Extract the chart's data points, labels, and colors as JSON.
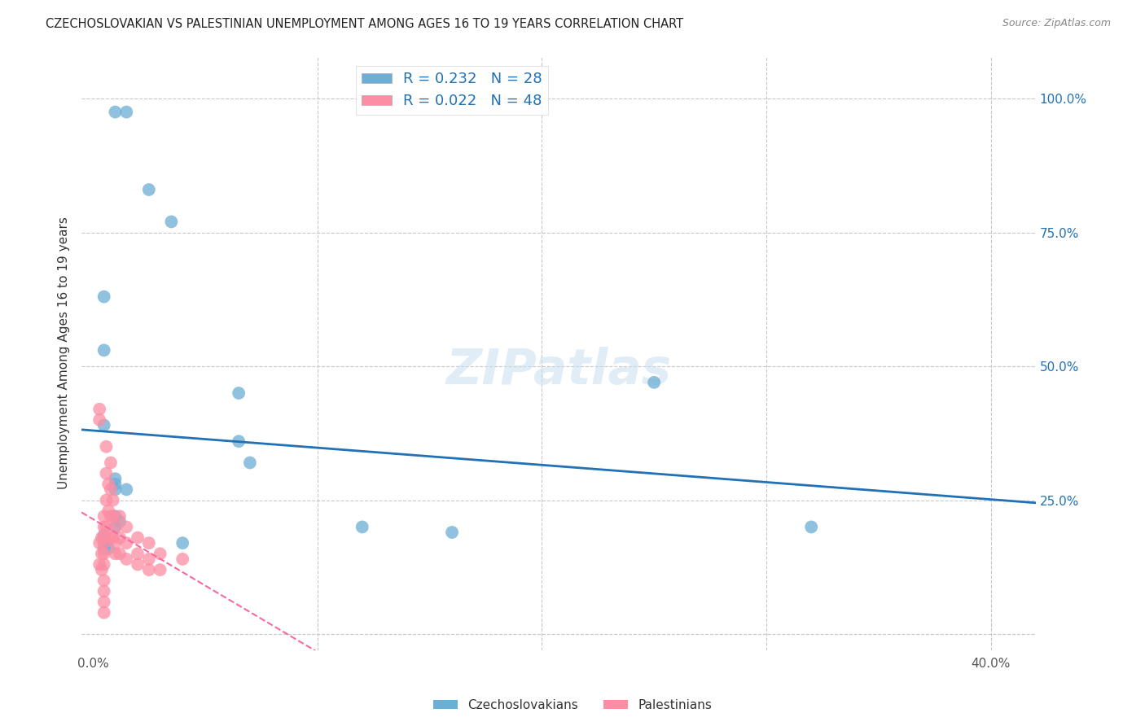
{
  "title": "CZECHOSLOVAKIAN VS PALESTINIAN UNEMPLOYMENT AMONG AGES 16 TO 19 YEARS CORRELATION CHART",
  "source": "Source: ZipAtlas.com",
  "ylabel": "Unemployment Among Ages 16 to 19 years",
  "x_ticks": [
    0.0,
    10.0,
    20.0,
    30.0,
    40.0
  ],
  "x_tick_labels": [
    "0.0%",
    "",
    "",
    "",
    "40.0%"
  ],
  "y_ticks": [
    0.0,
    25.0,
    50.0,
    75.0,
    100.0
  ],
  "y_tick_labels": [
    "",
    "25.0%",
    "50.0%",
    "75.0%",
    "100.0%"
  ],
  "xlim": [
    -0.5,
    42.0
  ],
  "ylim": [
    -3.0,
    108.0
  ],
  "legend_labels": [
    "Czechoslovakians",
    "Palestinians"
  ],
  "r_czech": 0.232,
  "n_czech": 28,
  "r_pales": 0.022,
  "n_pales": 48,
  "blue_color": "#6baed6",
  "pink_color": "#fc8da3",
  "blue_line_color": "#2171b5",
  "pink_line_color": "#f768a1",
  "watermark": "ZIPatlas",
  "background_color": "#ffffff",
  "grid_color": "#c8c8c8",
  "czech_x": [
    2.5,
    3.5,
    0.5,
    0.5,
    6.5,
    25.0,
    0.5,
    6.5,
    1.0,
    1.0,
    1.0,
    1.5,
    1.0,
    1.2,
    1.0,
    12.0,
    0.5,
    0.5,
    0.6,
    4.0,
    7.0,
    1.0,
    1.5,
    0.5,
    32.0,
    16.0,
    0.5,
    0.7
  ],
  "czech_y": [
    83.0,
    77.0,
    63.0,
    53.0,
    45.0,
    47.0,
    39.0,
    36.0,
    29.0,
    28.0,
    27.0,
    27.0,
    22.0,
    21.0,
    20.0,
    20.0,
    18.5,
    18.0,
    17.0,
    17.0,
    32.0,
    97.5,
    97.5,
    17.0,
    20.0,
    19.0,
    16.0,
    16.0
  ],
  "pales_x": [
    0.3,
    0.3,
    0.3,
    0.3,
    0.4,
    0.4,
    0.4,
    0.5,
    0.5,
    0.5,
    0.5,
    0.5,
    0.5,
    0.6,
    0.6,
    0.6,
    0.6,
    0.7,
    0.7,
    0.8,
    0.8,
    0.8,
    0.8,
    0.9,
    0.9,
    0.9,
    1.0,
    1.0,
    1.0,
    1.2,
    1.2,
    1.2,
    1.5,
    1.5,
    1.5,
    2.0,
    2.0,
    2.0,
    2.5,
    2.5,
    2.5,
    3.0,
    3.0,
    4.0,
    0.5,
    0.5,
    0.5,
    0.5
  ],
  "pales_y": [
    42.0,
    40.0,
    17.0,
    13.0,
    18.0,
    15.0,
    12.0,
    22.0,
    20.0,
    18.0,
    17.0,
    15.0,
    13.0,
    35.0,
    30.0,
    25.0,
    20.0,
    28.0,
    23.0,
    32.0,
    27.0,
    22.0,
    18.0,
    25.0,
    22.0,
    18.0,
    20.0,
    17.0,
    15.0,
    22.0,
    18.0,
    15.0,
    20.0,
    17.0,
    14.0,
    18.0,
    15.0,
    13.0,
    17.0,
    14.0,
    12.0,
    15.0,
    12.0,
    14.0,
    10.0,
    8.0,
    6.0,
    4.0
  ]
}
